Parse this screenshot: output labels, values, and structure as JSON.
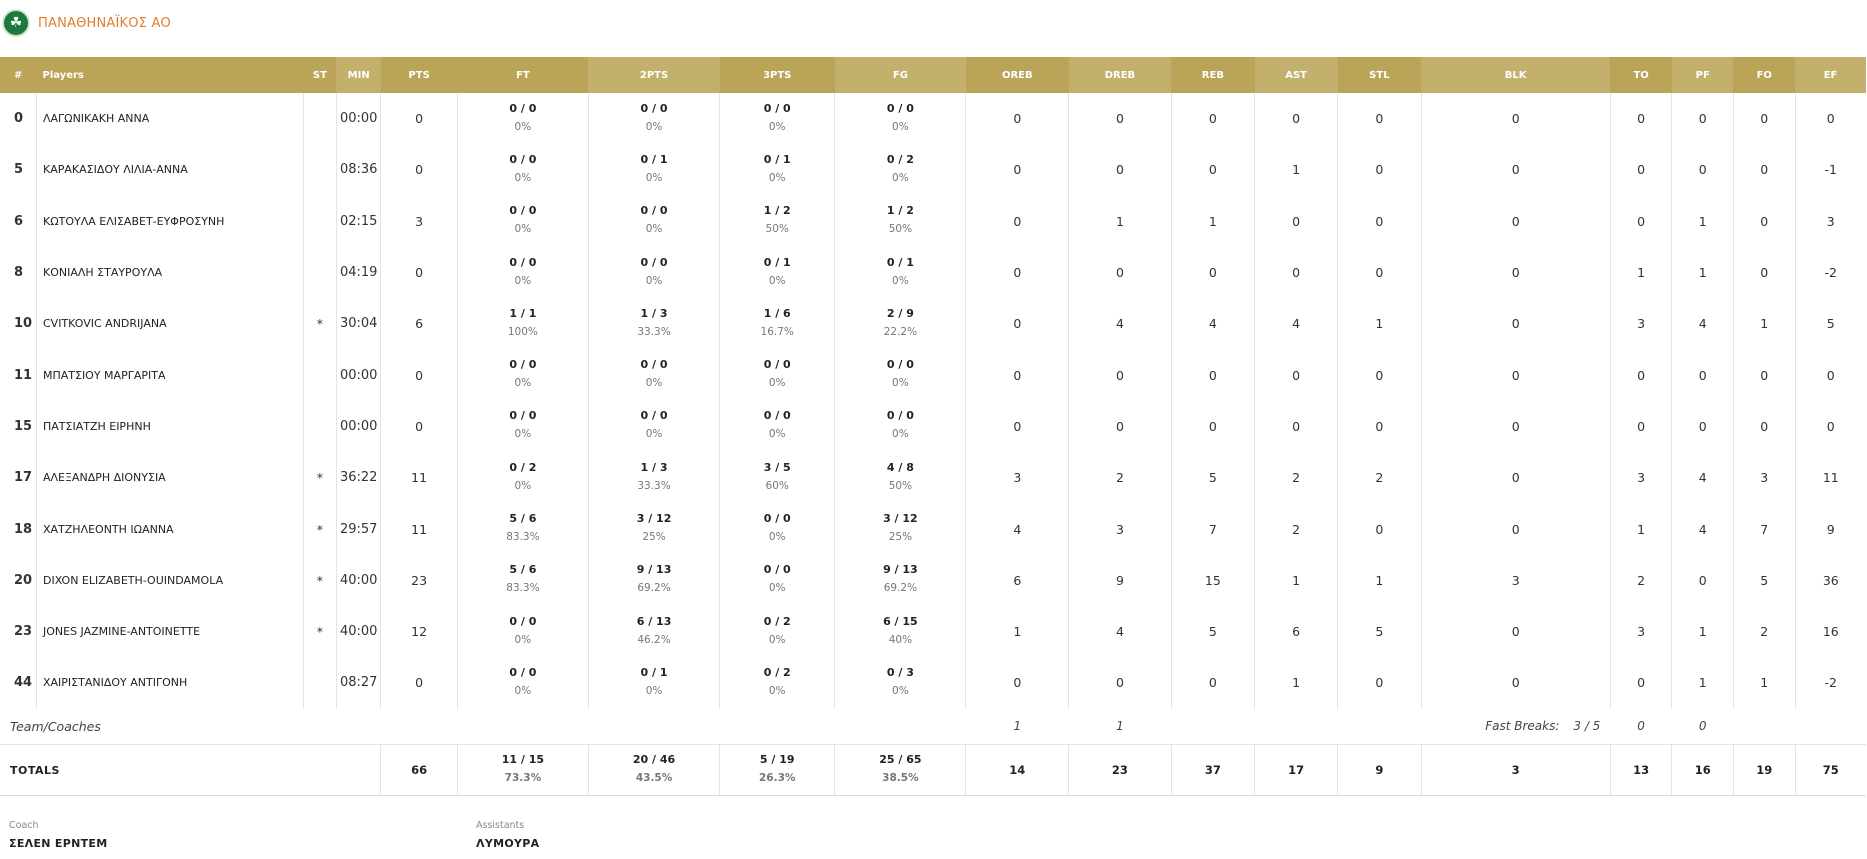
{
  "team": {
    "name": "ΠΑΝΑΘΗΝΑΪΚΟΣ ΑΟ",
    "logo_icon": "clover-icon",
    "accent": "#e07f2a",
    "header_color": "#b9a458"
  },
  "columns": [
    "#",
    "Players",
    "ST",
    "MIN",
    "PTS",
    "FT",
    "2PTS",
    "3PTS",
    "FG",
    "OREB",
    "DREB",
    "REB",
    "AST",
    "STL",
    "BLK",
    "TO",
    "PF",
    "FO",
    "EF"
  ],
  "players": [
    {
      "num": "0",
      "name": "ΛΑΓΩΝΙΚΑΚΗ ΑΝΝΑ",
      "st": "",
      "min": "00:00",
      "pts": "0",
      "ft": {
        "m": "0 / 0",
        "p": "0%"
      },
      "p2": {
        "m": "0 / 0",
        "p": "0%"
      },
      "p3": {
        "m": "0 / 0",
        "p": "0%"
      },
      "fg": {
        "m": "0 / 0",
        "p": "0%"
      },
      "oreb": "0",
      "dreb": "0",
      "reb": "0",
      "ast": "0",
      "stl": "0",
      "blk": "0",
      "to": "0",
      "pf": "0",
      "fo": "0",
      "ef": "0"
    },
    {
      "num": "5",
      "name": "ΚΑΡΑΚΑΣΙΔΟΥ ΛΙΛΙΑ-ΑΝΝΑ",
      "st": "",
      "min": "08:36",
      "pts": "0",
      "ft": {
        "m": "0 / 0",
        "p": "0%"
      },
      "p2": {
        "m": "0 / 1",
        "p": "0%"
      },
      "p3": {
        "m": "0 / 1",
        "p": "0%"
      },
      "fg": {
        "m": "0 / 2",
        "p": "0%"
      },
      "oreb": "0",
      "dreb": "0",
      "reb": "0",
      "ast": "1",
      "stl": "0",
      "blk": "0",
      "to": "0",
      "pf": "0",
      "fo": "0",
      "ef": "-1"
    },
    {
      "num": "6",
      "name": "ΚΩΤΟΥΛΑ ΕΛΙΣΑΒΕΤ-ΕΥΦΡΟΣΥΝΗ",
      "st": "",
      "min": "02:15",
      "pts": "3",
      "ft": {
        "m": "0 / 0",
        "p": "0%"
      },
      "p2": {
        "m": "0 / 0",
        "p": "0%"
      },
      "p3": {
        "m": "1 / 2",
        "p": "50%"
      },
      "fg": {
        "m": "1 / 2",
        "p": "50%"
      },
      "oreb": "0",
      "dreb": "1",
      "reb": "1",
      "ast": "0",
      "stl": "0",
      "blk": "0",
      "to": "0",
      "pf": "1",
      "fo": "0",
      "ef": "3"
    },
    {
      "num": "8",
      "name": "ΚΟΝΙΑΛΗ ΣΤΑΥΡΟΥΛΑ",
      "st": "",
      "min": "04:19",
      "pts": "0",
      "ft": {
        "m": "0 / 0",
        "p": "0%"
      },
      "p2": {
        "m": "0 / 0",
        "p": "0%"
      },
      "p3": {
        "m": "0 / 1",
        "p": "0%"
      },
      "fg": {
        "m": "0 / 1",
        "p": "0%"
      },
      "oreb": "0",
      "dreb": "0",
      "reb": "0",
      "ast": "0",
      "stl": "0",
      "blk": "0",
      "to": "1",
      "pf": "1",
      "fo": "0",
      "ef": "-2"
    },
    {
      "num": "10",
      "name": "CVITKOVIC ANDRIJANA",
      "st": "*",
      "min": "30:04",
      "pts": "6",
      "ft": {
        "m": "1 / 1",
        "p": "100%"
      },
      "p2": {
        "m": "1 / 3",
        "p": "33.3%"
      },
      "p3": {
        "m": "1 / 6",
        "p": "16.7%"
      },
      "fg": {
        "m": "2 / 9",
        "p": "22.2%"
      },
      "oreb": "0",
      "dreb": "4",
      "reb": "4",
      "ast": "4",
      "stl": "1",
      "blk": "0",
      "to": "3",
      "pf": "4",
      "fo": "1",
      "ef": "5"
    },
    {
      "num": "11",
      "name": "ΜΠΑΤΣΙΟΥ ΜΑΡΓΑΡΙΤΑ",
      "st": "",
      "min": "00:00",
      "pts": "0",
      "ft": {
        "m": "0 / 0",
        "p": "0%"
      },
      "p2": {
        "m": "0 / 0",
        "p": "0%"
      },
      "p3": {
        "m": "0 / 0",
        "p": "0%"
      },
      "fg": {
        "m": "0 / 0",
        "p": "0%"
      },
      "oreb": "0",
      "dreb": "0",
      "reb": "0",
      "ast": "0",
      "stl": "0",
      "blk": "0",
      "to": "0",
      "pf": "0",
      "fo": "0",
      "ef": "0"
    },
    {
      "num": "15",
      "name": "ΠΑΤΣΙΑΤΖΗ ΕΙΡΗΝΗ",
      "st": "",
      "min": "00:00",
      "pts": "0",
      "ft": {
        "m": "0 / 0",
        "p": "0%"
      },
      "p2": {
        "m": "0 / 0",
        "p": "0%"
      },
      "p3": {
        "m": "0 / 0",
        "p": "0%"
      },
      "fg": {
        "m": "0 / 0",
        "p": "0%"
      },
      "oreb": "0",
      "dreb": "0",
      "reb": "0",
      "ast": "0",
      "stl": "0",
      "blk": "0",
      "to": "0",
      "pf": "0",
      "fo": "0",
      "ef": "0"
    },
    {
      "num": "17",
      "name": "ΑΛΕΞΑΝΔΡΗ ΔΙΟΝΥΣΙΑ",
      "st": "*",
      "min": "36:22",
      "pts": "11",
      "ft": {
        "m": "0 / 2",
        "p": "0%"
      },
      "p2": {
        "m": "1 / 3",
        "p": "33.3%"
      },
      "p3": {
        "m": "3 / 5",
        "p": "60%"
      },
      "fg": {
        "m": "4 / 8",
        "p": "50%"
      },
      "oreb": "3",
      "dreb": "2",
      "reb": "5",
      "ast": "2",
      "stl": "2",
      "blk": "0",
      "to": "3",
      "pf": "4",
      "fo": "3",
      "ef": "11"
    },
    {
      "num": "18",
      "name": "ΧΑΤΖΗΛΕΟΝΤΗ ΙΩΑΝΝΑ",
      "st": "*",
      "min": "29:57",
      "pts": "11",
      "ft": {
        "m": "5 / 6",
        "p": "83.3%"
      },
      "p2": {
        "m": "3 / 12",
        "p": "25%"
      },
      "p3": {
        "m": "0 / 0",
        "p": "0%"
      },
      "fg": {
        "m": "3 / 12",
        "p": "25%"
      },
      "oreb": "4",
      "dreb": "3",
      "reb": "7",
      "ast": "2",
      "stl": "0",
      "blk": "0",
      "to": "1",
      "pf": "4",
      "fo": "7",
      "ef": "9"
    },
    {
      "num": "20",
      "name": "DIXON ELIZABETH-OUINDAMOLA",
      "st": "*",
      "min": "40:00",
      "pts": "23",
      "ft": {
        "m": "5 / 6",
        "p": "83.3%"
      },
      "p2": {
        "m": "9 / 13",
        "p": "69.2%"
      },
      "p3": {
        "m": "0 / 0",
        "p": "0%"
      },
      "fg": {
        "m": "9 / 13",
        "p": "69.2%"
      },
      "oreb": "6",
      "dreb": "9",
      "reb": "15",
      "ast": "1",
      "stl": "1",
      "blk": "3",
      "to": "2",
      "pf": "0",
      "fo": "5",
      "ef": "36"
    },
    {
      "num": "23",
      "name": "JONES JAZMINE-ANTOINETTE",
      "st": "*",
      "min": "40:00",
      "pts": "12",
      "ft": {
        "m": "0 / 0",
        "p": "0%"
      },
      "p2": {
        "m": "6 / 13",
        "p": "46.2%"
      },
      "p3": {
        "m": "0 / 2",
        "p": "0%"
      },
      "fg": {
        "m": "6 / 15",
        "p": "40%"
      },
      "oreb": "1",
      "dreb": "4",
      "reb": "5",
      "ast": "6",
      "stl": "5",
      "blk": "0",
      "to": "3",
      "pf": "1",
      "fo": "2",
      "ef": "16"
    },
    {
      "num": "44",
      "name": "ΧΑΙΡΙΣΤΑΝΙΔΟΥ ΑΝΤΙΓΟΝΗ",
      "st": "",
      "min": "08:27",
      "pts": "0",
      "ft": {
        "m": "0 / 0",
        "p": "0%"
      },
      "p2": {
        "m": "0 / 1",
        "p": "0%"
      },
      "p3": {
        "m": "0 / 2",
        "p": "0%"
      },
      "fg": {
        "m": "0 / 3",
        "p": "0%"
      },
      "oreb": "0",
      "dreb": "0",
      "reb": "0",
      "ast": "1",
      "stl": "0",
      "blk": "0",
      "to": "0",
      "pf": "1",
      "fo": "1",
      "ef": "-2"
    }
  ],
  "team_row": {
    "label": "Team/Coaches",
    "oreb": "1",
    "dreb": "1",
    "fast_breaks_label": "Fast Breaks:",
    "fast_breaks_value": "3 / 5",
    "to": "0",
    "pf": "0"
  },
  "totals": {
    "label": "TOTALS",
    "pts": "66",
    "ft": {
      "m": "11 / 15",
      "p": "73.3%"
    },
    "p2": {
      "m": "20 / 46",
      "p": "43.5%"
    },
    "p3": {
      "m": "5 / 19",
      "p": "26.3%"
    },
    "fg": {
      "m": "25 / 65",
      "p": "38.5%"
    },
    "oreb": "14",
    "dreb": "23",
    "reb": "37",
    "ast": "17",
    "stl": "9",
    "blk": "3",
    "to": "13",
    "pf": "16",
    "fo": "19",
    "ef": "75"
  },
  "staff": {
    "coach_label": "Coach",
    "coach": "ΣΕΛΕΝ ΕΡΝΤΕΜ",
    "assistants_label": "Assistants",
    "assistants": "ΛΥΜΟΥΡΑ"
  }
}
